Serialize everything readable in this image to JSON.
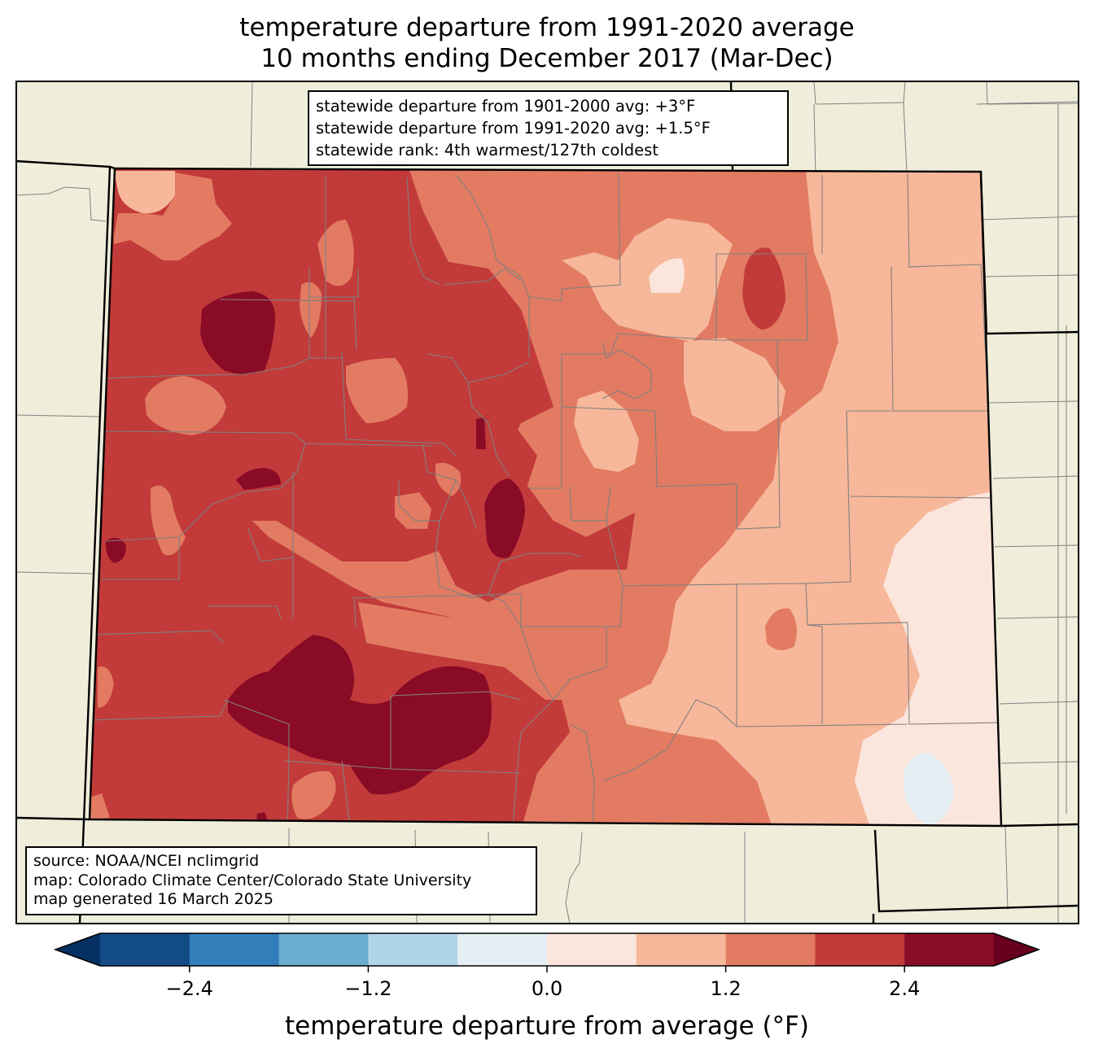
{
  "header": {
    "title_line1": "temperature departure from 1991-2020 average",
    "title_line2": "10 months ending December 2017 (Mar-Dec)"
  },
  "stats_box": {
    "line1": "statewide departure from 1901-2000 avg: +3°F",
    "line2": "statewide departure from 1991-2020 avg: +1.5°F",
    "line3": "statewide rank: 4th warmest/127th coldest"
  },
  "source_box": {
    "line1": "source: NOAA/NCEI nclimgrid",
    "line2": "map: Colorado Climate Center/Colorado State University",
    "line3": "map generated 16 March 2025"
  },
  "colorbar": {
    "label": "temperature departure from average (°F)",
    "ticks": [
      "−2.4",
      "−1.2",
      "0.0",
      "1.2",
      "2.4"
    ],
    "bins": [
      -3.0,
      -2.4,
      -1.8,
      -1.2,
      -0.6,
      0.0,
      0.6,
      1.2,
      1.8,
      2.4,
      3.0
    ],
    "colors": [
      "#134b87",
      "#327ebb",
      "#6bacd1",
      "#b0d5e6",
      "#e5eef3",
      "#fae6dc",
      "#f7b79a",
      "#e27b62",
      "#c23a3a",
      "#8a0b25"
    ],
    "under_color": "#053061",
    "over_color": "#67001f"
  },
  "map_colors": {
    "land": "#efeedb",
    "county_lines": "#808080",
    "state_lines": "#000000"
  }
}
